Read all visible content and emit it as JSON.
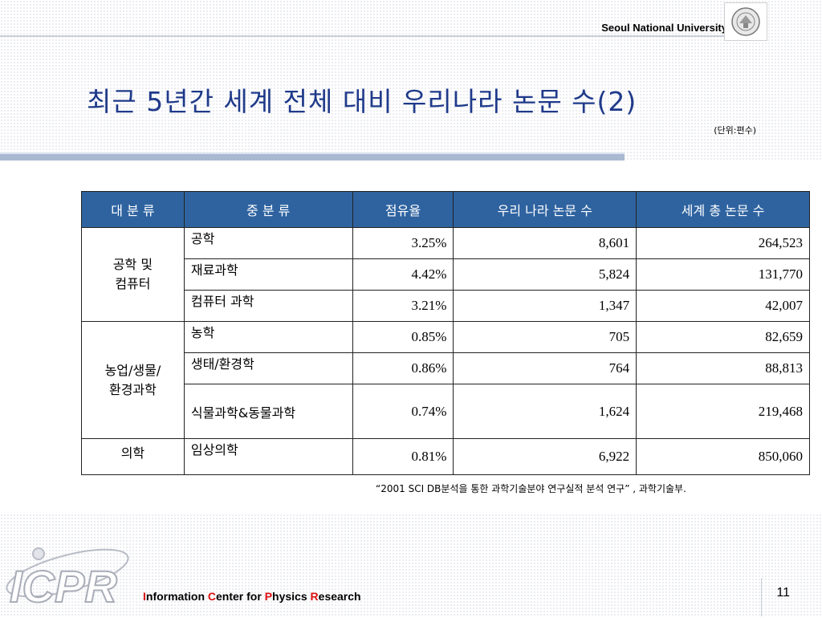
{
  "header": {
    "university": "Seoul National University"
  },
  "title": "최근 5년간 세계 전체 대비 우리나라 논문 수(2)",
  "unit_note": "(단위:편수)",
  "table": {
    "headers": [
      "대 분 류",
      "중 분 류",
      "점유율",
      "우리 나라 논문 수",
      "세계 총 논문 수"
    ],
    "groups": [
      {
        "category": "공학 및\n컴퓨터",
        "rows": [
          {
            "sub": "공학",
            "share": "3.25%",
            "korea": "8,601",
            "world": "264,523"
          },
          {
            "sub": "재료과학",
            "share": "4.42%",
            "korea": "5,824",
            "world": "131,770"
          },
          {
            "sub": "컴퓨터 과학",
            "share": "3.21%",
            "korea": "1,347",
            "world": "42,007"
          }
        ]
      },
      {
        "category": "농업/생물/\n환경과학",
        "rows": [
          {
            "sub": "농학",
            "share": "0.85%",
            "korea": "705",
            "world": "82,659"
          },
          {
            "sub": "생태/환경학",
            "share": "0.86%",
            "korea": "764",
            "world": "88,813"
          },
          {
            "sub": "식물과학&동물과학",
            "share": "0.74%",
            "korea": "1,624",
            "world": "219,468"
          }
        ]
      },
      {
        "category": "의학",
        "rows": [
          {
            "sub": "임상의학",
            "share": "0.81%",
            "korea": "6,922",
            "world": "850,060"
          }
        ]
      }
    ]
  },
  "source": "“2001 SCI DB분석을 통한 과학기술분야 연구실적 분석 연구” , 과학기술부.",
  "footer": {
    "logo_text": "ICPR",
    "org_parts": [
      {
        "t": "I",
        "red": true
      },
      {
        "t": "nformation ",
        "red": false
      },
      {
        "t": "C",
        "red": true
      },
      {
        "t": "enter for ",
        "red": false
      },
      {
        "t": "P",
        "red": true
      },
      {
        "t": "hysics ",
        "red": false
      },
      {
        "t": "R",
        "red": true
      },
      {
        "t": "esearch",
        "red": false
      }
    ],
    "page_number": "11"
  },
  "colors": {
    "title": "#1f3a8a",
    "header_fill": "#2f63a0",
    "accent_red": "#d11"
  }
}
